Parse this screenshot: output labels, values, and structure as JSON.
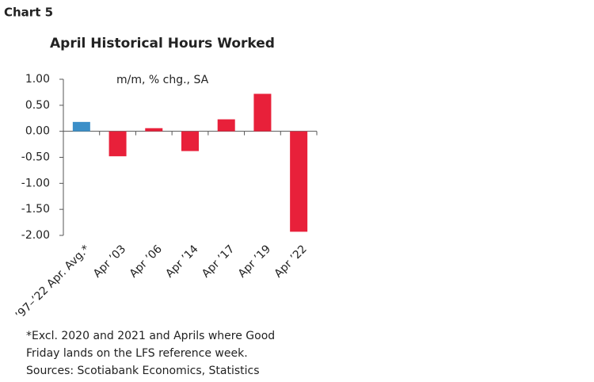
{
  "chart_label": "Chart 5",
  "chart_data": {
    "type": "bar",
    "title": "April Historical Hours Worked",
    "subtitle": "m/m, % chg., SA",
    "categories": [
      "’97–’22 Apr. Avg.*",
      "Apr ’03",
      "Apr ’06",
      "Apr ’14",
      "Apr ’17",
      "Apr ’19",
      "Apr ’22"
    ],
    "values": [
      0.18,
      -0.48,
      0.06,
      -0.38,
      0.23,
      0.72,
      -1.93
    ],
    "colors": [
      "#3b8fc8",
      "#e8203a",
      "#e8203a",
      "#e8203a",
      "#e8203a",
      "#e8203a",
      "#e8203a"
    ],
    "ylim": [
      -2,
      1
    ],
    "yticks": [
      {
        "value": 1,
        "label": "1.00"
      },
      {
        "value": 0.5,
        "label": "0.50"
      },
      {
        "value": 0,
        "label": "0.00"
      },
      {
        "value": -0.5,
        "label": "-0.50"
      },
      {
        "value": -1,
        "label": "-1.00"
      },
      {
        "value": -1.5,
        "label": "-1.50"
      },
      {
        "value": -2,
        "label": "-2.00"
      }
    ],
    "notes": [
      "*Excl. 2020 and 2021 and Aprils where Good",
      "Friday lands on the LFS reference week.",
      "Sources: Scotiabank Economics, Statistics"
    ]
  }
}
